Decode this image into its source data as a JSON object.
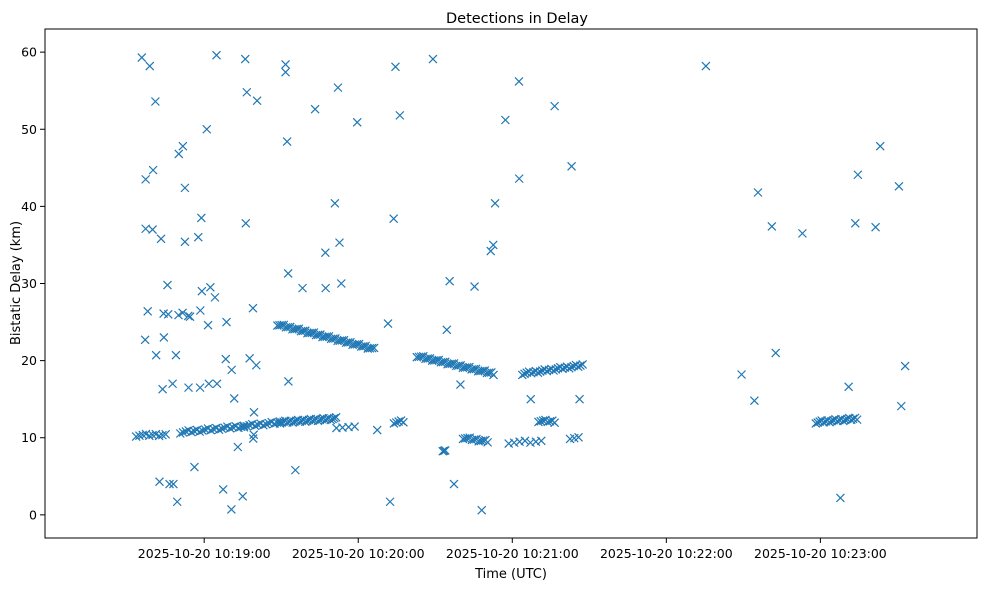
{
  "chart_data": {
    "type": "scatter",
    "title": "Detections in Delay",
    "xlabel": "Time (UTC)",
    "ylabel": "Bistatic Delay (km)",
    "marker": "x",
    "color": "#1f77b4",
    "x_unit": "seconds after 2025-10-20 10:18:00",
    "xlim": [
      -17,
      346
    ],
    "ylim": [
      -3,
      63
    ],
    "grid": false,
    "x_ticks": [
      {
        "value": 45,
        "label": "2025-10-20 10:19:00"
      },
      {
        "value": 105,
        "label": "2025-10-20 10:20:00"
      },
      {
        "value": 165,
        "label": "2025-10-20 10:21:00"
      },
      {
        "value": 225,
        "label": "2025-10-20 10:22:00"
      },
      {
        "value": 285,
        "label": "2025-10-20 10:23:00"
      }
    ],
    "y_ticks": [
      {
        "value": 0,
        "label": "0"
      },
      {
        "value": 10,
        "label": "10"
      },
      {
        "value": 20,
        "label": "20"
      },
      {
        "value": 30,
        "label": "30"
      },
      {
        "value": 40,
        "label": "40"
      },
      {
        "value": 50,
        "label": "50"
      },
      {
        "value": 60,
        "label": "60"
      }
    ],
    "clutter_points": [
      [
        20.7,
        59.3
      ],
      [
        23.8,
        58.2
      ],
      [
        26.0,
        53.6
      ],
      [
        22.2,
        43.5
      ],
      [
        25.1,
        44.7
      ],
      [
        22.2,
        37.1
      ],
      [
        24.9,
        37.0
      ],
      [
        23.0,
        26.4
      ],
      [
        22.0,
        22.7
      ],
      [
        26.3,
        20.7
      ],
      [
        28.2,
        35.8
      ],
      [
        29.2,
        26.1
      ],
      [
        29.3,
        23.0
      ],
      [
        28.8,
        16.3
      ],
      [
        30.7,
        29.8
      ],
      [
        31.0,
        26.0
      ],
      [
        32.7,
        17.0
      ],
      [
        34.0,
        20.7
      ],
      [
        35.0,
        25.9
      ],
      [
        36.6,
        26.2
      ],
      [
        35.1,
        46.8
      ],
      [
        36.7,
        47.8
      ],
      [
        37.5,
        42.4
      ],
      [
        37.5,
        35.4
      ],
      [
        38.8,
        25.8
      ],
      [
        39.5,
        25.7
      ],
      [
        38.9,
        16.5
      ],
      [
        43.4,
        16.5
      ],
      [
        42.7,
        36.0
      ],
      [
        43.9,
        38.5
      ],
      [
        43.5,
        26.5
      ],
      [
        44.1,
        29.0
      ],
      [
        46.0,
        50.0
      ],
      [
        46.5,
        24.6
      ],
      [
        47.4,
        29.5
      ],
      [
        46.8,
        17.0
      ],
      [
        49.2,
        28.2
      ],
      [
        50.0,
        17.0
      ],
      [
        49.8,
        59.6
      ],
      [
        53.4,
        20.2
      ],
      [
        53.7,
        25.0
      ],
      [
        55.7,
        18.8
      ],
      [
        56.7,
        15.1
      ],
      [
        61.0,
        59.1
      ],
      [
        61.2,
        37.8
      ],
      [
        61.6,
        54.8
      ],
      [
        62.7,
        20.3
      ],
      [
        64.0,
        26.8
      ],
      [
        65.6,
        53.7
      ],
      [
        65.3,
        19.4
      ],
      [
        64.4,
        13.3
      ],
      [
        64.1,
        9.9
      ],
      [
        64.3,
        10.4
      ],
      [
        76.7,
        58.4
      ],
      [
        76.7,
        57.4
      ],
      [
        77.3,
        48.4
      ],
      [
        77.7,
        31.3
      ],
      [
        77.8,
        17.3
      ],
      [
        80.5,
        5.8
      ],
      [
        83.3,
        29.4
      ],
      [
        88.2,
        52.6
      ],
      [
        92.3,
        29.4
      ],
      [
        92.2,
        34.0
      ],
      [
        95.9,
        40.4
      ],
      [
        97.1,
        55.4
      ],
      [
        97.7,
        35.3
      ],
      [
        98.4,
        30.0
      ],
      [
        104.6,
        50.9
      ],
      [
        112.4,
        11.0
      ],
      [
        116.6,
        24.8
      ],
      [
        118.8,
        38.4
      ],
      [
        119.5,
        58.1
      ],
      [
        121.2,
        51.8
      ],
      [
        134.1,
        59.1
      ],
      [
        139.5,
        24.0
      ],
      [
        140.6,
        30.3
      ],
      [
        142.3,
        4.0
      ],
      [
        144.8,
        16.9
      ],
      [
        150.3,
        29.6
      ],
      [
        153.1,
        0.6
      ],
      [
        156.6,
        34.2
      ],
      [
        157.6,
        35.0
      ],
      [
        158.3,
        40.4
      ],
      [
        162.3,
        51.2
      ],
      [
        167.7,
        43.6
      ],
      [
        167.6,
        56.2
      ],
      [
        172.2,
        15.0
      ],
      [
        181.5,
        53.0
      ],
      [
        188.1,
        45.2
      ],
      [
        191.2,
        15.0
      ],
      [
        240.4,
        58.2
      ],
      [
        254.3,
        18.2
      ],
      [
        259.3,
        14.8
      ],
      [
        260.7,
        41.8
      ],
      [
        266.1,
        37.4
      ],
      [
        267.6,
        21.0
      ],
      [
        278.0,
        36.5
      ],
      [
        292.8,
        2.2
      ],
      [
        296.0,
        16.6
      ],
      [
        298.6,
        37.8
      ],
      [
        299.6,
        44.1
      ],
      [
        306.5,
        37.3
      ],
      [
        308.3,
        47.8
      ],
      [
        315.6,
        42.6
      ],
      [
        316.5,
        14.1
      ],
      [
        318.0,
        19.3
      ],
      [
        27.6,
        4.3
      ],
      [
        31.5,
        4.0
      ],
      [
        33.0,
        4.0
      ],
      [
        34.5,
        1.7
      ],
      [
        41.2,
        6.2
      ],
      [
        52.4,
        3.3
      ],
      [
        55.6,
        0.7
      ],
      [
        58.1,
        8.8
      ],
      [
        60.0,
        2.4
      ],
      [
        117.4,
        1.7
      ]
    ],
    "track_segments": [
      {
        "x_start": 18.5,
        "y_start": 10.3,
        "x_end": 30.0,
        "y_end": 10.4,
        "n": 10
      },
      {
        "x_start": 35.7,
        "y_start": 10.7,
        "x_end": 60.5,
        "y_end": 11.5,
        "n": 24
      },
      {
        "x_start": 60.5,
        "y_start": 11.5,
        "x_end": 74.5,
        "y_end": 12.0,
        "n": 14
      },
      {
        "x_start": 74.5,
        "y_start": 12.0,
        "x_end": 96.4,
        "y_end": 12.5,
        "n": 32
      },
      {
        "x_start": 96.5,
        "y_start": 11.4,
        "x_end": 103.6,
        "y_end": 11.3,
        "n": 4
      },
      {
        "x_start": 73.5,
        "y_start": 24.7,
        "x_end": 111.2,
        "y_end": 21.5,
        "n": 46
      },
      {
        "x_start": 127.8,
        "y_start": 20.6,
        "x_end": 157.7,
        "y_end": 18.3,
        "n": 36
      },
      {
        "x_start": 118.9,
        "y_start": 12.0,
        "x_end": 122.6,
        "y_end": 12.1,
        "n": 5
      },
      {
        "x_start": 137.9,
        "y_start": 8.4,
        "x_end": 138.9,
        "y_end": 8.3,
        "n": 3
      },
      {
        "x_start": 145.8,
        "y_start": 10.0,
        "x_end": 155.4,
        "y_end": 9.5,
        "n": 12
      },
      {
        "x_start": 163.6,
        "y_start": 9.4,
        "x_end": 176.3,
        "y_end": 9.5,
        "n": 7
      },
      {
        "x_start": 175.2,
        "y_start": 12.2,
        "x_end": 181.5,
        "y_end": 12.1,
        "n": 8
      },
      {
        "x_start": 168.9,
        "y_start": 18.3,
        "x_end": 192.4,
        "y_end": 19.4,
        "n": 28
      },
      {
        "x_start": 187.5,
        "y_start": 10.0,
        "x_end": 190.8,
        "y_end": 10.0,
        "n": 3
      },
      {
        "x_start": 283.2,
        "y_start": 12.0,
        "x_end": 299.3,
        "y_end": 12.5,
        "n": 22
      }
    ]
  }
}
